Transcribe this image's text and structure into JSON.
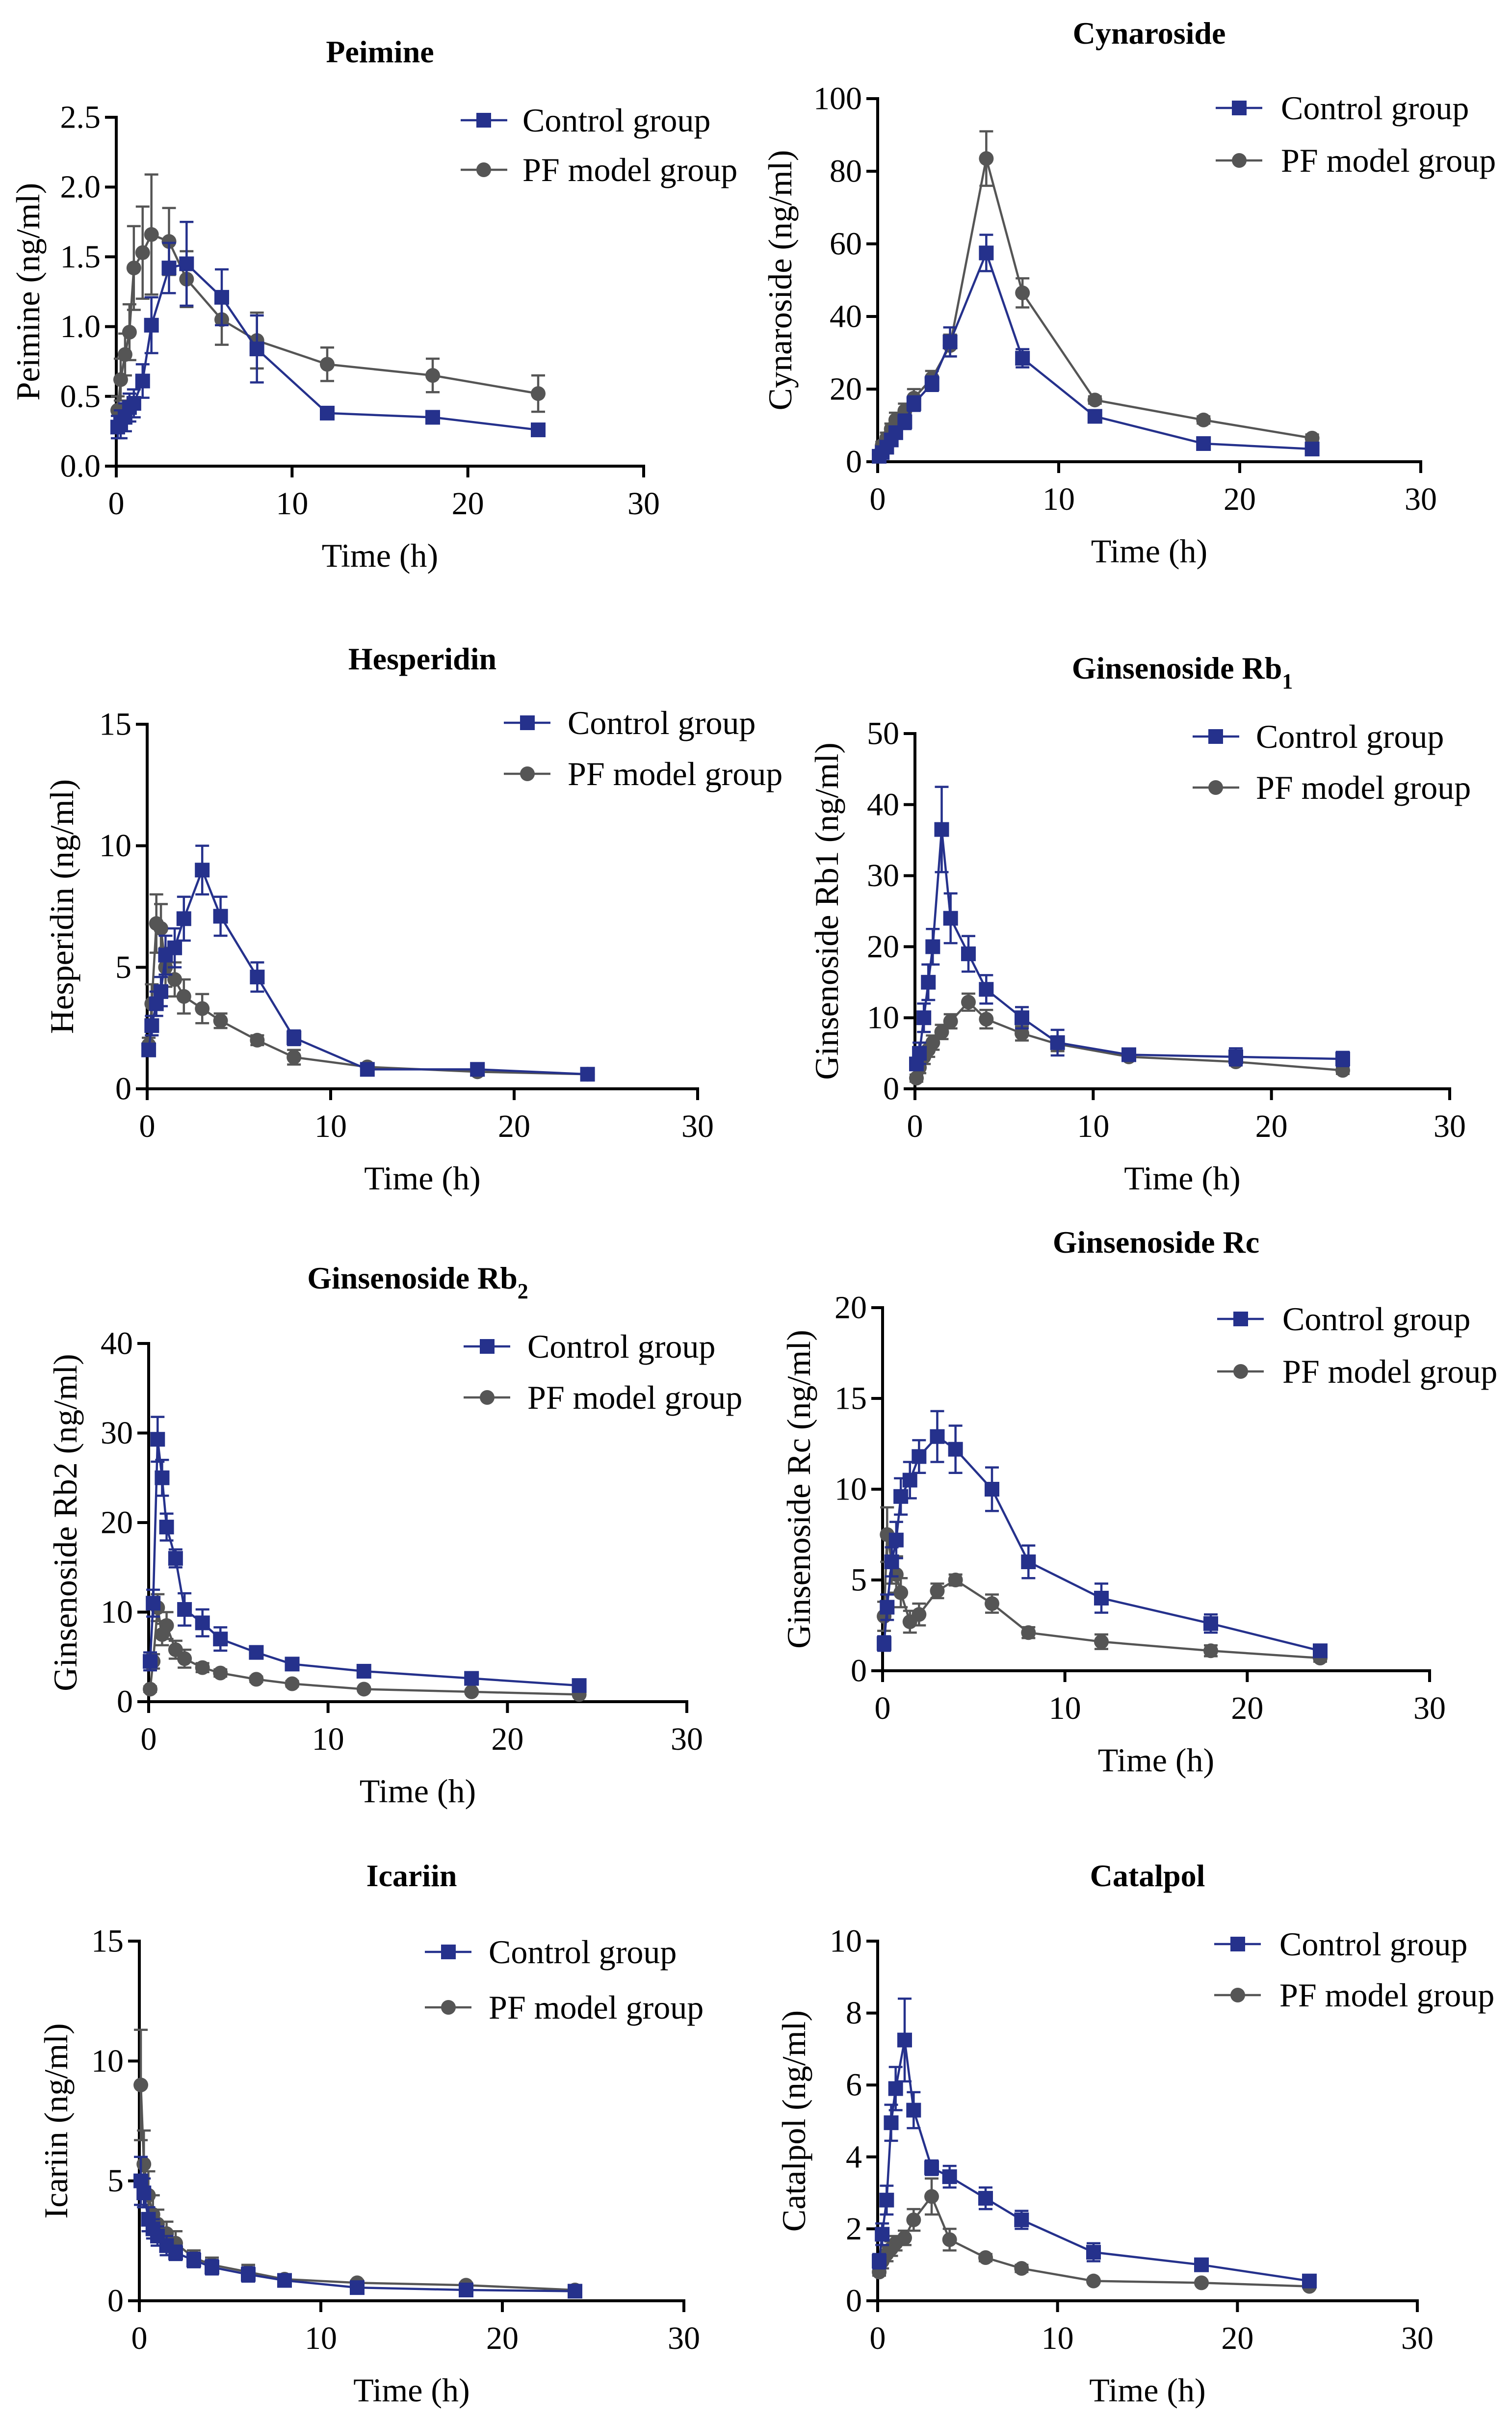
{
  "chart_data": [
    {
      "type": "line",
      "title": "Peimine",
      "xlabel": "Time (h)",
      "ylabel": "Peimine (ng/ml)",
      "xlim": [
        0,
        30
      ],
      "ylim": [
        0,
        2.5
      ],
      "xticks": [
        0,
        10,
        20,
        30
      ],
      "xtick_labels": [
        "0",
        "10",
        "20",
        "30"
      ],
      "yticks": [
        0,
        0.5,
        1,
        1.5,
        2,
        2.5
      ],
      "ytick_labels": [
        "0.0",
        "0.5",
        "1.0",
        "1.5",
        "2.0",
        "2.5"
      ],
      "legend_position": "top-right",
      "x": [
        0.083,
        0.25,
        0.5,
        0.75,
        1,
        1.5,
        2,
        3,
        4,
        6,
        8,
        12,
        18,
        24
      ],
      "series": [
        {
          "name": "Control group",
          "marker": "square",
          "color": "#25318c",
          "values": [
            0.28,
            0.3,
            0.35,
            0.42,
            0.45,
            0.61,
            1.01,
            1.42,
            1.45,
            1.21,
            0.84,
            0.38,
            0.35,
            0.26
          ],
          "error": [
            0.08,
            0.1,
            0.1,
            0.1,
            0.1,
            0.12,
            0.2,
            0.18,
            0.3,
            0.2,
            0.24,
            0.03,
            0.03,
            0.03
          ]
        },
        {
          "name": "PF model group",
          "marker": "circle",
          "color": "#555555",
          "values": [
            0.4,
            0.62,
            0.8,
            0.96,
            1.42,
            1.53,
            1.66,
            1.61,
            1.34,
            1.05,
            0.9,
            0.73,
            0.65,
            0.52
          ],
          "error": [
            0.1,
            0.15,
            0.15,
            0.2,
            0.3,
            0.33,
            0.43,
            0.24,
            0.2,
            0.18,
            0.2,
            0.12,
            0.12,
            0.13
          ]
        }
      ]
    },
    {
      "type": "line",
      "title": "Cynaroside",
      "xlabel": "Time (h)",
      "ylabel": "Cynaroside (ng/ml)",
      "xlim": [
        0,
        30
      ],
      "ylim": [
        0,
        100
      ],
      "xticks": [
        0,
        10,
        20,
        30
      ],
      "xtick_labels": [
        "0",
        "10",
        "20",
        "30"
      ],
      "yticks": [
        0,
        20,
        40,
        60,
        80,
        100
      ],
      "ytick_labels": [
        "0",
        "20",
        "40",
        "60",
        "80",
        "100"
      ],
      "legend_position": "top-right",
      "x": [
        0.083,
        0.25,
        0.5,
        0.75,
        1,
        1.5,
        2,
        3,
        4,
        6,
        8,
        12,
        18,
        24
      ],
      "series": [
        {
          "name": "Control group",
          "marker": "square",
          "color": "#25318c",
          "values": [
            1.5,
            2.5,
            4,
            6,
            8,
            11,
            16,
            21.5,
            33,
            57.5,
            28.5,
            12.5,
            5,
            3.5
          ],
          "error": [
            0.5,
            1,
            1,
            1,
            1.5,
            2,
            2,
            2,
            4,
            5,
            2.5,
            1,
            0.5,
            0.5
          ]
        },
        {
          "name": "PF model group",
          "marker": "circle",
          "color": "#555555",
          "values": [
            2,
            4.5,
            6.5,
            9,
            11.5,
            14,
            17.5,
            23,
            32,
            83.5,
            46.5,
            17,
            11.5,
            6.5
          ],
          "error": [
            1,
            1,
            1.5,
            1.5,
            2,
            2,
            2.5,
            2,
            3,
            7.5,
            4,
            1,
            1,
            1
          ]
        }
      ]
    },
    {
      "type": "line",
      "title": "Hesperidin",
      "xlabel": "Time (h)",
      "ylabel": "Hesperidin (ng/ml)",
      "xlim": [
        0,
        30
      ],
      "ylim": [
        0,
        15
      ],
      "xticks": [
        0,
        10,
        20,
        30
      ],
      "xtick_labels": [
        "0",
        "10",
        "20",
        "30"
      ],
      "yticks": [
        0,
        5,
        10,
        15
      ],
      "ytick_labels": [
        "0",
        "5",
        "10",
        "15"
      ],
      "legend_position": "top-right",
      "x": [
        0.083,
        0.25,
        0.5,
        0.75,
        1,
        1.5,
        2,
        3,
        4,
        6,
        8,
        12,
        18,
        24
      ],
      "series": [
        {
          "name": "Control group",
          "marker": "square",
          "color": "#25318c",
          "values": [
            1.6,
            2.6,
            3.5,
            4.0,
            5.5,
            5.8,
            7.0,
            9.0,
            7.1,
            4.6,
            2.1,
            0.8,
            0.8,
            0.6
          ],
          "error": [
            0.2,
            0.4,
            0.5,
            0.6,
            0.8,
            0.8,
            0.9,
            1.0,
            0.8,
            0.6,
            0.3,
            0.1,
            0.1,
            0.1
          ]
        },
        {
          "name": "PF model group",
          "marker": "circle",
          "color": "#555555",
          "values": [
            1.8,
            3.5,
            6.8,
            6.6,
            5.0,
            4.5,
            3.8,
            3.3,
            2.8,
            2.0,
            1.3,
            0.9,
            0.7,
            0.6
          ],
          "error": [
            0.3,
            0.8,
            1.2,
            1.0,
            0.8,
            0.7,
            0.7,
            0.6,
            0.3,
            0.2,
            0.3,
            0.1,
            0.1,
            0.1
          ]
        }
      ]
    },
    {
      "type": "line",
      "title": "Ginsenoside Rb",
      "title_sub": "1",
      "xlabel": "Time (h)",
      "ylabel": "Ginsenoside Rb1 (ng/ml)",
      "xlim": [
        0,
        30
      ],
      "ylim": [
        0,
        50
      ],
      "xticks": [
        0,
        10,
        20,
        30
      ],
      "xtick_labels": [
        "0",
        "10",
        "20",
        "30"
      ],
      "yticks": [
        0,
        10,
        20,
        30,
        40,
        50
      ],
      "ytick_labels": [
        "0",
        "10",
        "20",
        "30",
        "40",
        "50"
      ],
      "legend_position": "top-right",
      "x": [
        0.083,
        0.25,
        0.5,
        0.75,
        1,
        1.5,
        2,
        3,
        4,
        6,
        8,
        12,
        18,
        24
      ],
      "series": [
        {
          "name": "Control group",
          "marker": "square",
          "color": "#25318c",
          "values": [
            3.5,
            5,
            10,
            15,
            20,
            36.5,
            24,
            19,
            14,
            10,
            6.5,
            4.8,
            4.5,
            4.2
          ],
          "error": [
            0.8,
            1.5,
            2,
            2.5,
            2.5,
            6,
            3.5,
            2.5,
            2,
            1.5,
            1.8,
            0.8,
            1.2,
            1
          ]
        },
        {
          "name": "PF model group",
          "marker": "circle",
          "color": "#555555",
          "values": [
            1.5,
            3,
            4.5,
            5.5,
            6.5,
            8,
            9.5,
            12.2,
            9.8,
            7.8,
            6.3,
            4.5,
            3.8,
            2.6
          ],
          "error": [
            0.5,
            0.8,
            1,
            1,
            1,
            1,
            1,
            1.2,
            1.3,
            1,
            1,
            0.5,
            0.5,
            0.5
          ]
        }
      ]
    },
    {
      "type": "line",
      "title": "Ginsenoside Rb",
      "title_sub": "2",
      "xlabel": "Time (h)",
      "ylabel": "Ginsenoside Rb2 (ng/ml)",
      "xlim": [
        0,
        30
      ],
      "ylim": [
        0,
        40
      ],
      "xticks": [
        0,
        10,
        20,
        30
      ],
      "xtick_labels": [
        "0",
        "10",
        "20",
        "30"
      ],
      "yticks": [
        0,
        10,
        20,
        30,
        40
      ],
      "ytick_labels": [
        "0",
        "10",
        "20",
        "30",
        "40"
      ],
      "legend_position": "top-right",
      "x": [
        0.083,
        0.25,
        0.5,
        0.75,
        1,
        1.5,
        2,
        3,
        4,
        6,
        8,
        12,
        18,
        24
      ],
      "series": [
        {
          "name": "Control group",
          "marker": "square",
          "color": "#25318c",
          "values": [
            4.5,
            11,
            29.3,
            25,
            19.5,
            16,
            10.3,
            8.8,
            7,
            5.5,
            4.2,
            3.4,
            2.6,
            1.8
          ],
          "error": [
            1,
            1.5,
            2.5,
            2,
            1.5,
            1,
            1.8,
            1.5,
            1.3,
            0.6,
            0.4,
            0.3,
            0.3,
            0.2
          ]
        },
        {
          "name": "PF model group",
          "marker": "circle",
          "color": "#555555",
          "values": [
            1.4,
            4.5,
            10.5,
            7.5,
            8.5,
            5.8,
            4.8,
            3.8,
            3.2,
            2.5,
            2.0,
            1.4,
            1.1,
            0.8
          ],
          "error": [
            0.3,
            0.8,
            1.5,
            1.2,
            1.5,
            1,
            1,
            0.5,
            0.4,
            0.3,
            0.3,
            0.2,
            0.2,
            0.2
          ]
        }
      ]
    },
    {
      "type": "line",
      "title": "Ginsenoside Rc",
      "xlabel": "Time (h)",
      "ylabel": "Ginsenoside Rc (ng/ml)",
      "xlim": [
        0,
        30
      ],
      "ylim": [
        0,
        20
      ],
      "xticks": [
        0,
        10,
        20,
        30
      ],
      "xtick_labels": [
        "0",
        "10",
        "20",
        "30"
      ],
      "yticks": [
        0,
        5,
        10,
        15,
        20
      ],
      "ytick_labels": [
        "0",
        "5",
        "10",
        "15",
        "20"
      ],
      "legend_position": "top-right",
      "x": [
        0.083,
        0.25,
        0.5,
        0.75,
        1,
        1.5,
        2,
        3,
        4,
        6,
        8,
        12,
        18,
        24
      ],
      "series": [
        {
          "name": "Control group",
          "marker": "square",
          "color": "#25318c",
          "values": [
            1.5,
            3.5,
            6,
            7.2,
            9.6,
            10.5,
            11.8,
            12.9,
            12.2,
            10,
            6,
            4,
            2.6,
            1.1
          ],
          "error": [
            0.4,
            0.7,
            0.8,
            1,
            1,
            1,
            0.9,
            1.4,
            1.3,
            1.2,
            0.9,
            0.8,
            0.5,
            0.3
          ]
        },
        {
          "name": "PF model group",
          "marker": "circle",
          "color": "#555555",
          "values": [
            3,
            7.5,
            6,
            5.3,
            4.3,
            2.7,
            3.1,
            4.4,
            5.0,
            3.7,
            2.1,
            1.6,
            1.1,
            0.7
          ],
          "error": [
            0.8,
            1.5,
            1.2,
            1,
            0.8,
            0.6,
            0.6,
            0.4,
            0.3,
            0.5,
            0.3,
            0.4,
            0.3,
            0.2
          ]
        }
      ]
    },
    {
      "type": "line",
      "title": "Icariin",
      "xlabel": "Time (h)",
      "ylabel": "Icariin (ng/ml)",
      "xlim": [
        0,
        30
      ],
      "ylim": [
        0,
        15
      ],
      "xticks": [
        0,
        10,
        20,
        30
      ],
      "xtick_labels": [
        "0",
        "10",
        "20",
        "30"
      ],
      "yticks": [
        0,
        5,
        10,
        15
      ],
      "ytick_labels": [
        "0",
        "5",
        "10",
        "15"
      ],
      "legend_position": "top-right",
      "x": [
        0.083,
        0.25,
        0.5,
        0.75,
        1,
        1.5,
        2,
        3,
        4,
        6,
        8,
        12,
        18,
        24
      ],
      "series": [
        {
          "name": "Control group",
          "marker": "square",
          "color": "#25318c",
          "values": [
            5.0,
            4.5,
            3.4,
            3.0,
            2.7,
            2.3,
            2.0,
            1.7,
            1.4,
            1.1,
            0.85,
            0.55,
            0.45,
            0.4
          ],
          "error": [
            1.0,
            0.6,
            0.5,
            0.4,
            0.4,
            0.4,
            0.3,
            0.3,
            0.3,
            0.3,
            0.1,
            0.1,
            0.1,
            0.1
          ]
        },
        {
          "name": "PF model group",
          "marker": "circle",
          "color": "#555555",
          "values": [
            9.0,
            5.7,
            4.4,
            3.6,
            3.2,
            2.8,
            2.4,
            1.8,
            1.5,
            1.2,
            0.9,
            0.75,
            0.65,
            0.45
          ],
          "error": [
            2.3,
            1.4,
            1.0,
            0.8,
            0.6,
            0.5,
            0.5,
            0.3,
            0.3,
            0.3,
            0.1,
            0.1,
            0.1,
            0.1
          ]
        }
      ]
    },
    {
      "type": "line",
      "title": "Catalpol",
      "xlabel": "Time (h)",
      "ylabel": "Catalpol (ng/ml)",
      "xlim": [
        0,
        30
      ],
      "ylim": [
        0,
        10
      ],
      "xticks": [
        0,
        10,
        20,
        30
      ],
      "xtick_labels": [
        "0",
        "10",
        "20",
        "30"
      ],
      "yticks": [
        0,
        2,
        4,
        6,
        8,
        10
      ],
      "ytick_labels": [
        "0",
        "2",
        "4",
        "6",
        "8",
        "10"
      ],
      "legend_position": "top-right",
      "x": [
        0.083,
        0.25,
        0.5,
        0.75,
        1,
        1.5,
        2,
        3,
        4,
        6,
        8,
        12,
        18,
        24
      ],
      "series": [
        {
          "name": "Control group",
          "marker": "square",
          "color": "#25318c",
          "values": [
            1.1,
            1.85,
            2.8,
            4.95,
            5.9,
            7.25,
            5.3,
            3.7,
            3.45,
            2.85,
            2.25,
            1.35,
            1.0,
            0.55
          ],
          "error": [
            0.2,
            0.3,
            0.4,
            0.5,
            0.6,
            1.15,
            0.5,
            0.2,
            0.3,
            0.3,
            0.25,
            0.25,
            0.1,
            0.1
          ]
        },
        {
          "name": "PF model group",
          "marker": "circle",
          "color": "#555555",
          "values": [
            0.8,
            1.1,
            1.3,
            1.45,
            1.6,
            1.75,
            2.25,
            2.9,
            1.7,
            1.2,
            0.9,
            0.55,
            0.5,
            0.4
          ],
          "error": [
            0.1,
            0.2,
            0.2,
            0.2,
            0.2,
            0.2,
            0.3,
            0.5,
            0.3,
            0.1,
            0.1,
            0.05,
            0.05,
            0.05
          ]
        }
      ]
    }
  ]
}
